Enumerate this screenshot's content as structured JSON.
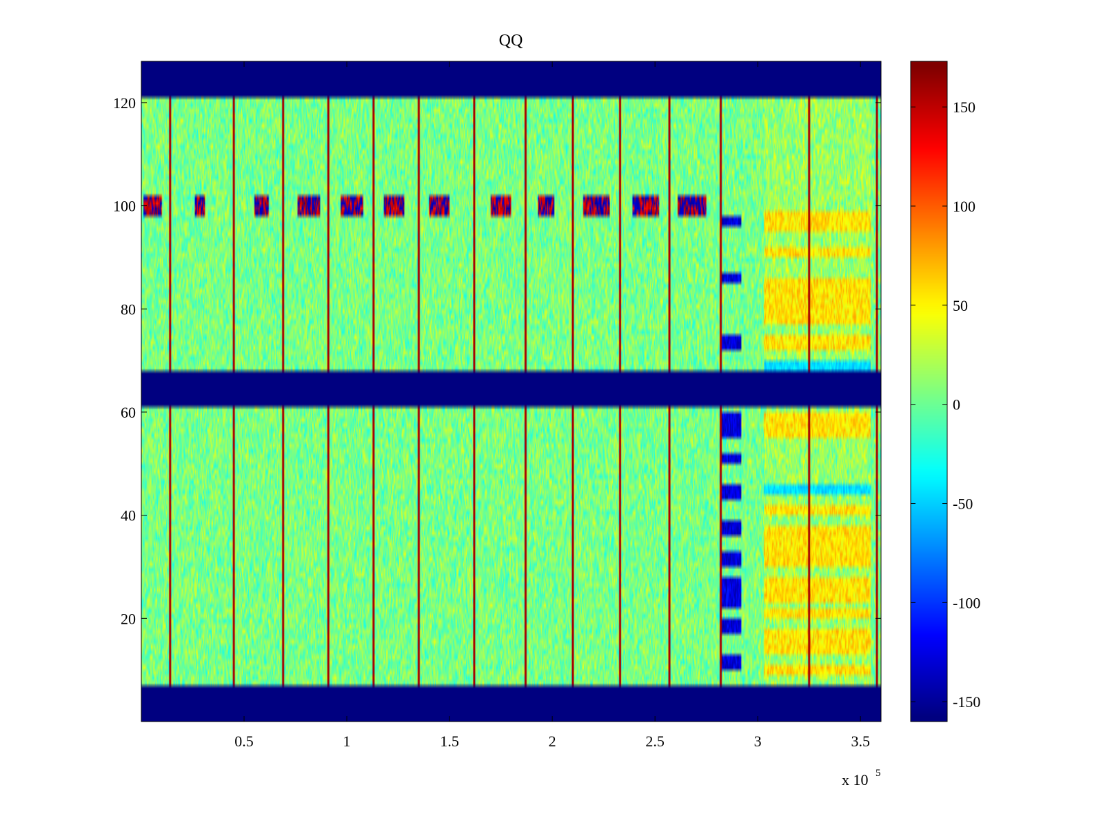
{
  "chart_data": {
    "type": "heatmap",
    "title": "QQ",
    "xlabel": "",
    "ylabel": "",
    "x_exponent_label": "x 10",
    "x_exponent_power": "5",
    "xlim": [
      0,
      360000
    ],
    "ylim": [
      0,
      128
    ],
    "x_ticks": [
      {
        "value": 0.5,
        "label": "0.5"
      },
      {
        "value": 1,
        "label": "1"
      },
      {
        "value": 1.5,
        "label": "1.5"
      },
      {
        "value": 2,
        "label": "2"
      },
      {
        "value": 2.5,
        "label": "2.5"
      },
      {
        "value": 3,
        "label": "3"
      },
      {
        "value": 3.5,
        "label": "3.5"
      }
    ],
    "y_ticks": [
      {
        "value": 20,
        "label": "20"
      },
      {
        "value": 40,
        "label": "40"
      },
      {
        "value": 60,
        "label": "60"
      },
      {
        "value": 80,
        "label": "80"
      },
      {
        "value": 100,
        "label": "100"
      },
      {
        "value": 120,
        "label": "120"
      }
    ],
    "colorbar": {
      "min": -160,
      "max": 173,
      "colormap": "jet",
      "ticks": [
        {
          "value": -150,
          "label": "-150"
        },
        {
          "value": -100,
          "label": "-100"
        },
        {
          "value": -50,
          "label": "-50"
        },
        {
          "value": 0,
          "label": "0"
        },
        {
          "value": 50,
          "label": "50"
        },
        {
          "value": 100,
          "label": "100"
        },
        {
          "value": 150,
          "label": "150"
        }
      ]
    },
    "masked_row_bands": [
      [
        0,
        7
      ],
      [
        61,
        68
      ],
      [
        121,
        128
      ]
    ],
    "masked_value": -160,
    "noise_value_range": [
      -40,
      40
    ],
    "vertical_stripes_x": [
      14000,
      45000,
      69000,
      91000,
      113000,
      135000,
      162000,
      187000,
      210000,
      233000,
      257000,
      282000,
      325000,
      358000
    ],
    "stripe_value": 160,
    "row_100_dashes_x": [
      [
        1000,
        10000
      ],
      [
        26000,
        31000
      ],
      [
        55000,
        62000
      ],
      [
        76000,
        87000
      ],
      [
        97000,
        108000
      ],
      [
        118000,
        128000
      ],
      [
        140000,
        150000
      ],
      [
        170000,
        180000
      ],
      [
        193000,
        201000
      ],
      [
        215000,
        228000
      ],
      [
        239000,
        252000
      ],
      [
        261000,
        275000
      ]
    ],
    "anomaly_region": {
      "x_range": [
        282000,
        292000
      ],
      "blue_blobs_y": [
        [
          10,
          13
        ],
        [
          17,
          20
        ],
        [
          22,
          28
        ],
        [
          30,
          33
        ],
        [
          36,
          39
        ],
        [
          43,
          46
        ],
        [
          50,
          52
        ],
        [
          55,
          60
        ],
        [
          72,
          75
        ],
        [
          85,
          87
        ],
        [
          96,
          98
        ]
      ],
      "blob_value": -150
    },
    "warm_region": {
      "x_range": [
        303000,
        355000
      ],
      "bands_y": [
        [
          9,
          11
        ],
        [
          13,
          18
        ],
        [
          20,
          22
        ],
        [
          23,
          28
        ],
        [
          30,
          38
        ],
        [
          40,
          42
        ],
        [
          55,
          60
        ],
        [
          72,
          75
        ],
        [
          77,
          86
        ],
        [
          90,
          92
        ],
        [
          95,
          99
        ]
      ],
      "band_value": 60,
      "cool_bands_y": [
        [
          44,
          46
        ],
        [
          68,
          70
        ]
      ]
    }
  }
}
